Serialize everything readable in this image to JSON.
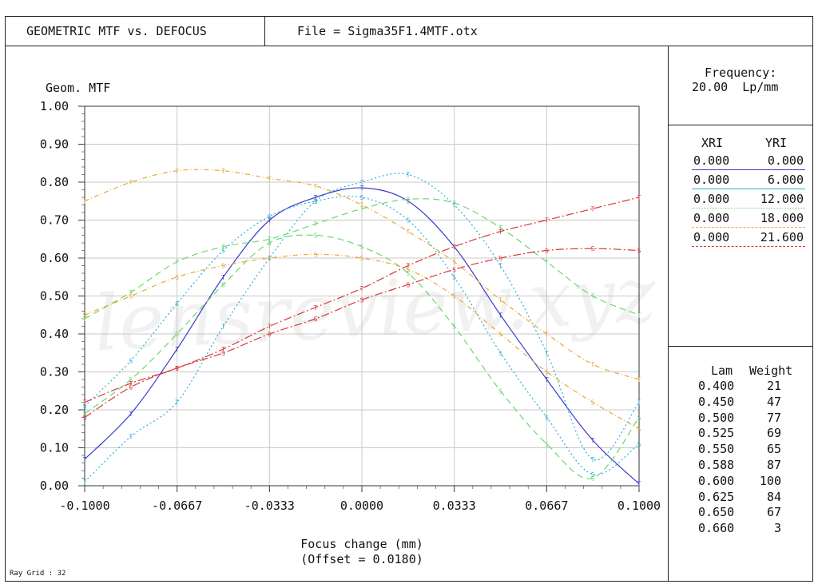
{
  "header": {
    "title": "GEOMETRIC MTF vs. DEFOCUS",
    "file": "File = Sigma35F1.4MTF.otx"
  },
  "frequency": {
    "label": "Frequency:",
    "value": "20.00  Lp/mm"
  },
  "field_table": {
    "headers": [
      "XRI",
      "YRI"
    ],
    "rows": [
      {
        "xri": "0.000",
        "yri": "0.000",
        "color": "#3a3ad0",
        "style": "solid"
      },
      {
        "xri": "0.000",
        "yri": "6.000",
        "color": "#2ab0d8",
        "style": "solid"
      },
      {
        "xri": "0.000",
        "yri": "12.000",
        "color": "#6ad86a",
        "style": "dotted"
      },
      {
        "xri": "0.000",
        "yri": "18.000",
        "color": "#e8a838",
        "style": "dashed"
      },
      {
        "xri": "0.000",
        "yri": "21.600",
        "color": "#d83838",
        "style": "dashdot"
      }
    ]
  },
  "wavelength_table": {
    "headers": [
      "Lam",
      "Weight"
    ],
    "rows": [
      [
        "0.400",
        "21"
      ],
      [
        "0.450",
        "47"
      ],
      [
        "0.500",
        "77"
      ],
      [
        "0.525",
        "69"
      ],
      [
        "0.550",
        "65"
      ],
      [
        "0.588",
        "87"
      ],
      [
        "0.600",
        "100"
      ],
      [
        "0.625",
        "84"
      ],
      [
        "0.650",
        "67"
      ],
      [
        "0.660",
        "3"
      ]
    ]
  },
  "footer": {
    "ray_grid": "Ray Grid : 32"
  },
  "watermark": "lensreview.xyz",
  "chart_data": {
    "type": "line",
    "ylabel": "Geom. MTF",
    "xlabel": "Focus change (mm)",
    "xlabel2": "(Offset = 0.0180)",
    "xlim": [
      -0.1,
      0.1
    ],
    "ylim": [
      0,
      1
    ],
    "x_ticks": [
      "-0.1000",
      "-0.0667",
      "-0.0333",
      "0.0000",
      "0.0333",
      "0.0667",
      "0.1000"
    ],
    "y_ticks": [
      "0.00",
      "0.10",
      "0.20",
      "0.30",
      "0.40",
      "0.50",
      "0.60",
      "0.70",
      "0.80",
      "0.90",
      "1.00"
    ],
    "grid": true,
    "x": [
      -0.1,
      -0.0833,
      -0.0667,
      -0.05,
      -0.0333,
      -0.0167,
      0.0,
      0.0167,
      0.0333,
      0.05,
      0.0667,
      0.0833,
      0.1
    ],
    "series": [
      {
        "field": "0.000",
        "color": "#3a3ad0",
        "dash": "",
        "marker": "T",
        "values": [
          0.07,
          0.19,
          0.36,
          0.55,
          0.7,
          0.76,
          0.785,
          0.75,
          0.63,
          0.45,
          0.28,
          0.12,
          0.005
        ]
      },
      {
        "field": "6.000 T",
        "color": "#2ab0d8",
        "dash": "2,3",
        "marker": "T",
        "values": [
          0.01,
          0.13,
          0.22,
          0.42,
          0.6,
          0.75,
          0.8,
          0.82,
          0.74,
          0.58,
          0.35,
          0.07,
          0.22
        ]
      },
      {
        "field": "6.000 S",
        "color": "#2ab0d8",
        "dash": "2,3",
        "marker": "S",
        "values": [
          0.21,
          0.33,
          0.48,
          0.62,
          0.71,
          0.75,
          0.76,
          0.7,
          0.55,
          0.35,
          0.18,
          0.03,
          0.11
        ]
      },
      {
        "field": "12.000 T",
        "color": "#6ad86a",
        "dash": "8,5",
        "marker": "T",
        "values": [
          0.44,
          0.51,
          0.59,
          0.63,
          0.65,
          0.69,
          0.73,
          0.755,
          0.745,
          0.68,
          0.59,
          0.5,
          0.45
        ]
      },
      {
        "field": "12.000 S",
        "color": "#6ad86a",
        "dash": "8,5",
        "marker": "S",
        "values": [
          0.19,
          0.28,
          0.4,
          0.53,
          0.64,
          0.66,
          0.63,
          0.56,
          0.42,
          0.25,
          0.11,
          0.02,
          0.18
        ]
      },
      {
        "field": "18.000 T",
        "color": "#e8a838",
        "dash": "6,3,1,3",
        "marker": "T",
        "values": [
          0.75,
          0.8,
          0.83,
          0.83,
          0.81,
          0.79,
          0.74,
          0.67,
          0.59,
          0.49,
          0.4,
          0.32,
          0.28
        ]
      },
      {
        "field": "18.000 S",
        "color": "#e8a838",
        "dash": "6,3,1,3",
        "marker": "S",
        "values": [
          0.45,
          0.5,
          0.55,
          0.58,
          0.6,
          0.61,
          0.6,
          0.57,
          0.5,
          0.4,
          0.3,
          0.22,
          0.15
        ]
      },
      {
        "field": "21.600 T",
        "color": "#d83838",
        "dash": "10,3,2,3",
        "marker": "T",
        "values": [
          0.22,
          0.27,
          0.31,
          0.36,
          0.42,
          0.47,
          0.52,
          0.58,
          0.63,
          0.67,
          0.7,
          0.73,
          0.76
        ]
      },
      {
        "field": "21.600 S",
        "color": "#d83838",
        "dash": "10,3,2,3",
        "marker": "S",
        "values": [
          0.18,
          0.26,
          0.31,
          0.35,
          0.4,
          0.44,
          0.49,
          0.53,
          0.57,
          0.6,
          0.62,
          0.625,
          0.62
        ]
      }
    ]
  }
}
